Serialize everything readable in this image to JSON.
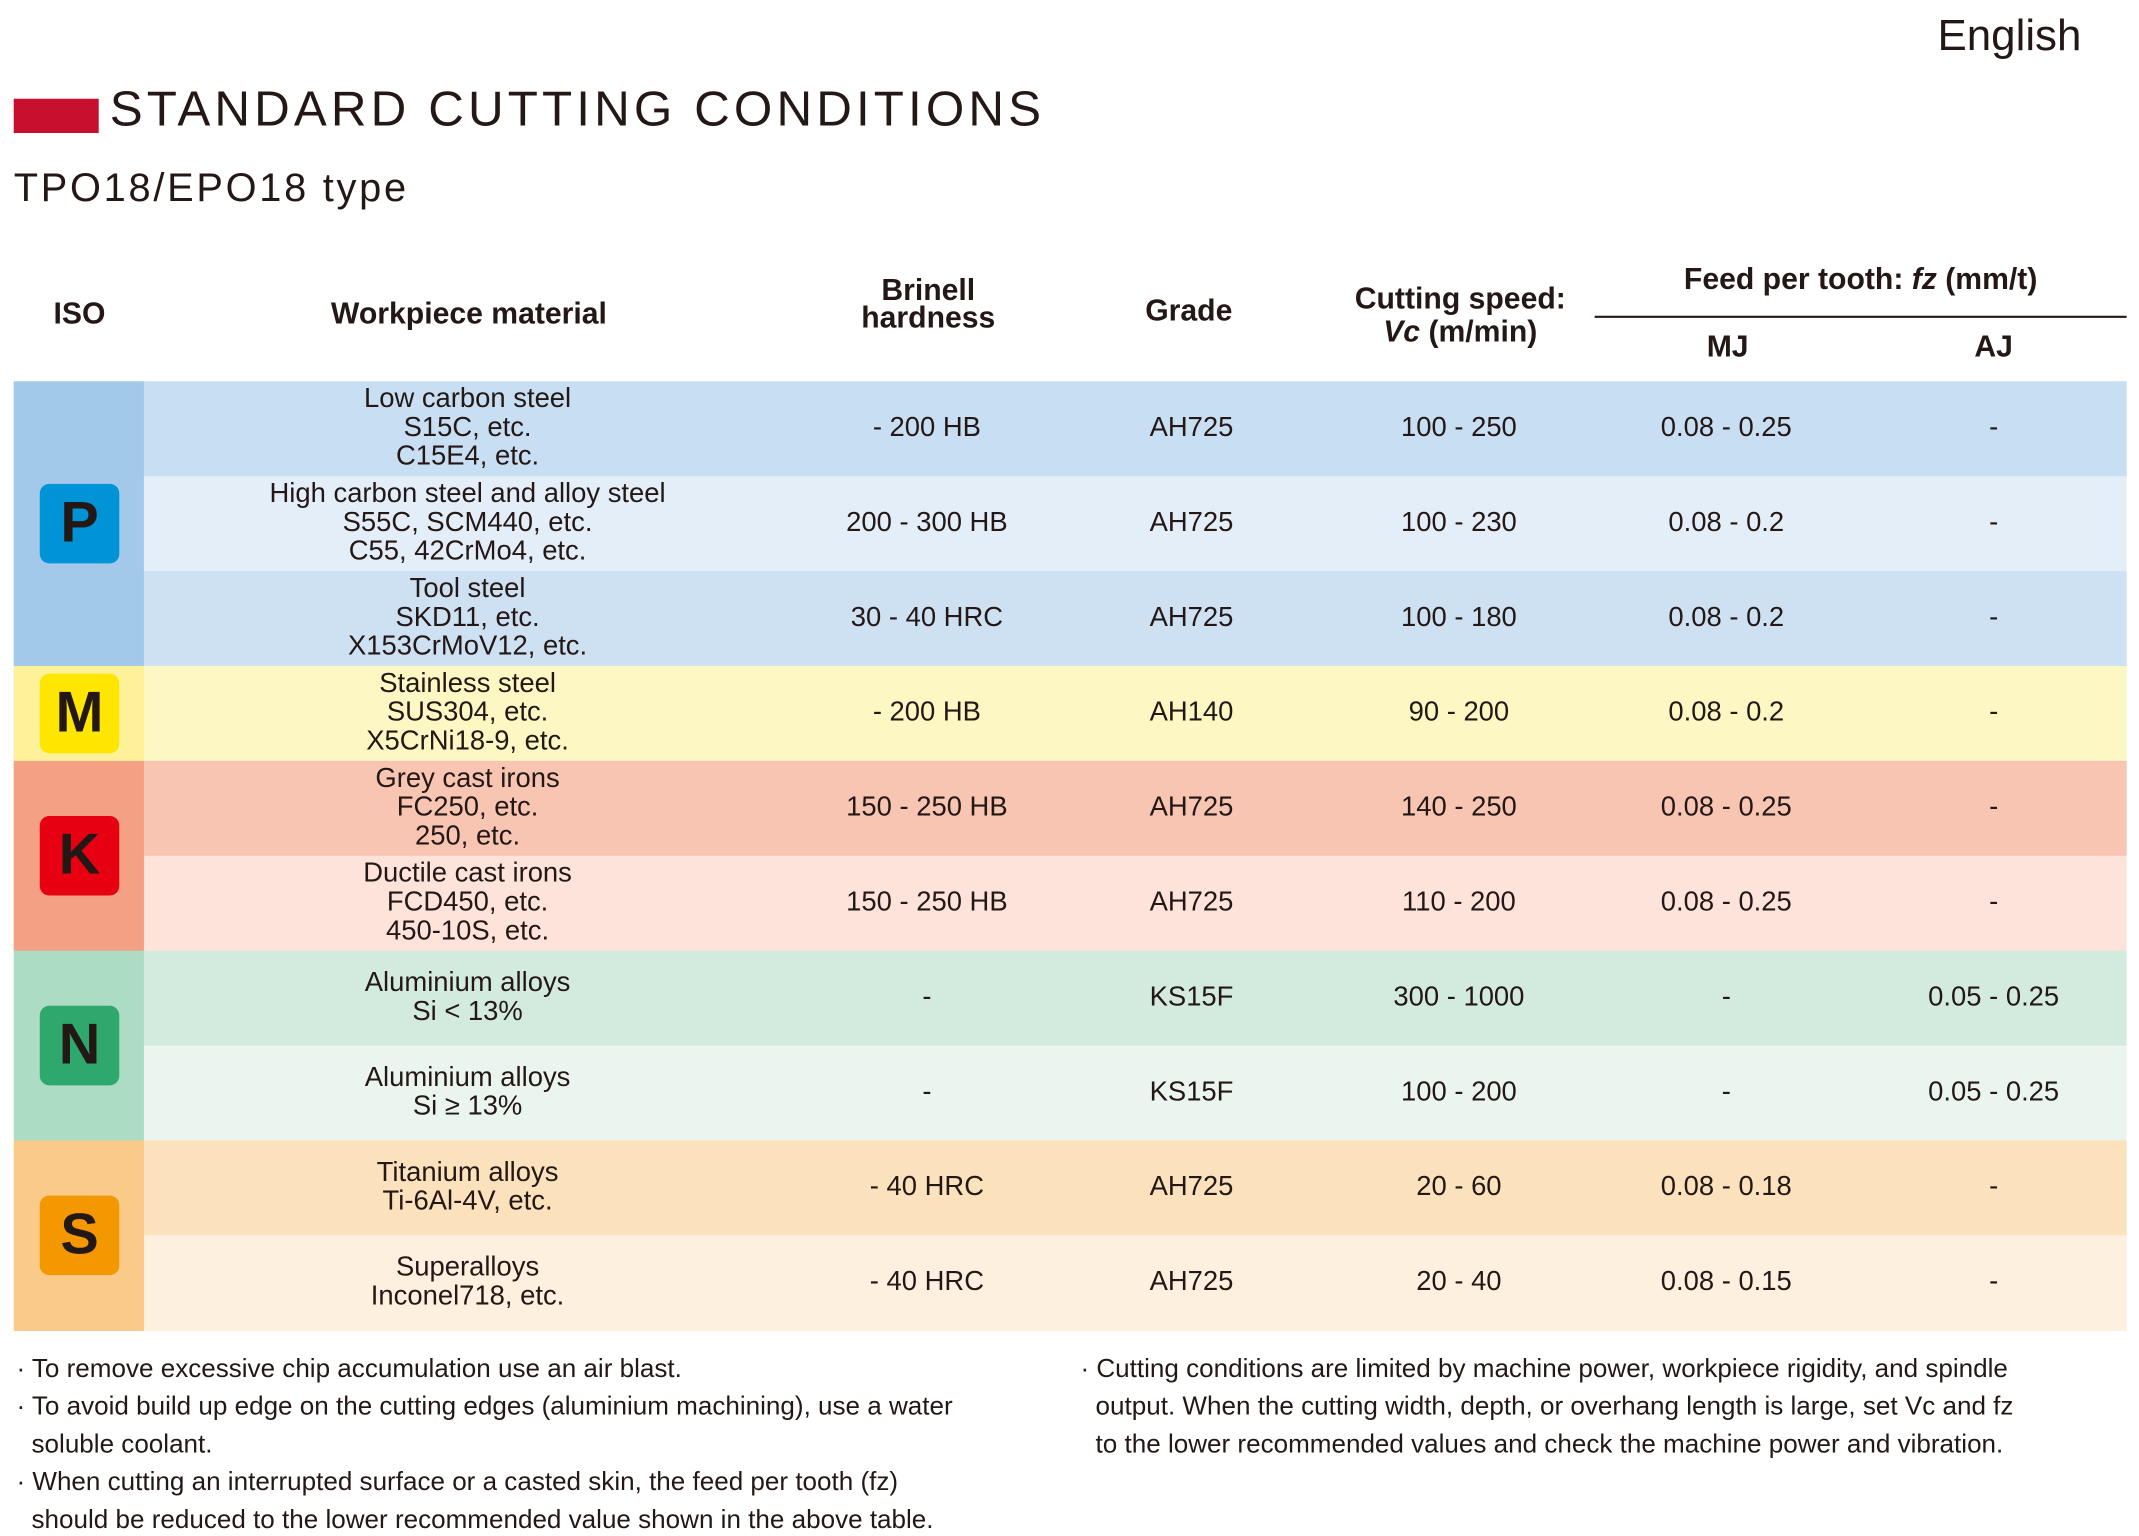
{
  "header": {
    "language": "English",
    "title": "STANDARD CUTTING CONDITIONS",
    "subtitle": "TPO18/EPO18 type"
  },
  "table": {
    "headers": {
      "iso": "ISO",
      "material": "Workpiece material",
      "hardness": [
        "Brinell",
        "hardness"
      ],
      "grade": "Grade",
      "speed": [
        "Cutting speed:",
        "Vc",
        " (m/min)"
      ],
      "feed": [
        "Feed per tooth: ",
        "fz",
        " (mm/t)"
      ],
      "mj": "MJ",
      "aj": "AJ"
    },
    "groups": [
      {
        "iso": "P",
        "color": "#a3c9ea",
        "badge_color": "#0093d6",
        "rows": [
          {
            "color": "#c8def2",
            "material": [
              "Low carbon steel",
              "S15C, etc.",
              "C15E4, etc."
            ],
            "hardness": "- 200 HB",
            "grade": "AH725",
            "speed": "100 - 250",
            "mj": "0.08 - 0.25",
            "aj": "-"
          },
          {
            "color": "#e3eef9",
            "material": [
              "High carbon steel and alloy steel",
              "S55C, SCM440, etc.",
              "C55, 42CrMo4, etc."
            ],
            "hardness": "200 - 300 HB",
            "grade": "AH725",
            "speed": "100 - 230",
            "mj": "0.08 - 0.2",
            "aj": "-"
          },
          {
            "color": "#cde1f3",
            "material": [
              "Tool steel",
              "SKD11, etc.",
              "X153CrMoV12, etc."
            ],
            "hardness": "30 - 40 HRC",
            "grade": "AH725",
            "speed": "100 - 180",
            "mj": "0.08 - 0.2",
            "aj": "-"
          }
        ]
      },
      {
        "iso": "M",
        "color": "#fdf19a",
        "badge_color": "#ffe600",
        "rows": [
          {
            "color": "#fdf7c3",
            "material": [
              "Stainless steel",
              "SUS304, etc.",
              "X5CrNi18-9, etc."
            ],
            "hardness": "- 200 HB",
            "grade": "AH140",
            "speed": "90 - 200",
            "mj": "0.08 - 0.2",
            "aj": "-"
          }
        ]
      },
      {
        "iso": "K",
        "color": "#f3a084",
        "badge_color": "#e60012",
        "rows": [
          {
            "color": "#f8c5b2",
            "material": [
              "Grey cast irons",
              "FC250, etc.",
              "250, etc."
            ],
            "hardness": "150 - 250 HB",
            "grade": "AH725",
            "speed": "140 - 250",
            "mj": "0.08 - 0.25",
            "aj": "-"
          },
          {
            "color": "#fde3da",
            "material": [
              "Ductile cast irons",
              "FCD450, etc.",
              "450-10S, etc."
            ],
            "hardness": "150 - 250 HB",
            "grade": "AH725",
            "speed": "110 - 200",
            "mj": "0.08 - 0.25",
            "aj": "-"
          }
        ]
      },
      {
        "iso": "N",
        "color": "#acdcc4",
        "badge_color": "#2ea86d",
        "rows": [
          {
            "color": "#d3ebde",
            "material": [
              "Aluminium alloys",
              "Si < 13%"
            ],
            "hardness": "-",
            "grade": "KS15F",
            "speed": "300 - 1000",
            "mj": "-",
            "aj": "0.05 - 0.25"
          },
          {
            "color": "#ebf5ef",
            "material": [
              "Aluminium alloys",
              "Si ≥ 13%"
            ],
            "hardness": "-",
            "grade": "KS15F",
            "speed": "100 - 200",
            "mj": "-",
            "aj": "0.05 - 0.25"
          }
        ]
      },
      {
        "iso": "S",
        "color": "#f9ca88",
        "badge_color": "#f39800",
        "rows": [
          {
            "color": "#fbe1bc",
            "material": [
              "Titanium alloys",
              "Ti-6Al-4V, etc."
            ],
            "hardness": "- 40 HRC",
            "grade": "AH725",
            "speed": "20 - 60",
            "mj": "0.08 - 0.18",
            "aj": "-"
          },
          {
            "color": "#fdf0df",
            "material": [
              "Superalloys",
              "Inconel718, etc."
            ],
            "hardness": "- 40 HRC",
            "grade": "AH725",
            "speed": "20 - 40",
            "mj": "0.08 - 0.15",
            "aj": "-"
          }
        ]
      }
    ]
  },
  "notes": {
    "left": [
      [
        "· To remove excessive chip accumulation use an air blast."
      ],
      [
        "· To avoid build up edge on the cutting edges (aluminium machining), use a water",
        "soluble coolant."
      ],
      [
        "· When cutting an interrupted surface or a casted skin, the feed per tooth (fz)",
        "should be reduced to the lower recommended value shown in the above table."
      ]
    ],
    "right": [
      [
        "· Cutting conditions are limited by machine power, workpiece rigidity, and spindle",
        "output.  When the cutting width, depth, or overhang length is large, set Vc and fz",
        "to the lower recommended values and check the machine power and vibration."
      ]
    ]
  }
}
